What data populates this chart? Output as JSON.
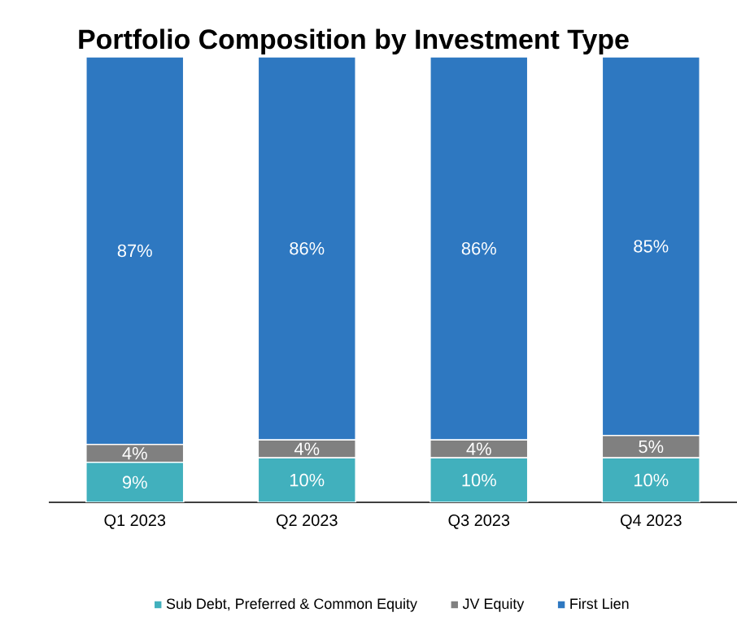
{
  "chart_data": {
    "type": "bar",
    "title": "Portfolio Composition by Investment Type",
    "categories": [
      "Q1 2023",
      "Q2 2023",
      "Q3 2023",
      "Q4 2023"
    ],
    "stacked": true,
    "legend": "bottom",
    "series": [
      {
        "name": "Sub Debt, Preferred & Common Equity",
        "color": "#41b0bd",
        "values": [
          9,
          10,
          10,
          10
        ],
        "value_labels": [
          "9%",
          "10%",
          "10%",
          "10%"
        ]
      },
      {
        "name": "JV Equity",
        "color": "#808080",
        "values": [
          4,
          4,
          4,
          5
        ],
        "value_labels": [
          "4%",
          "4%",
          "4%",
          "5%"
        ]
      },
      {
        "name": "First Lien",
        "color": "#2e78c1",
        "values": [
          87,
          86,
          86,
          85
        ],
        "value_labels": [
          "87%",
          "86%",
          "86%",
          "85%"
        ]
      }
    ]
  }
}
